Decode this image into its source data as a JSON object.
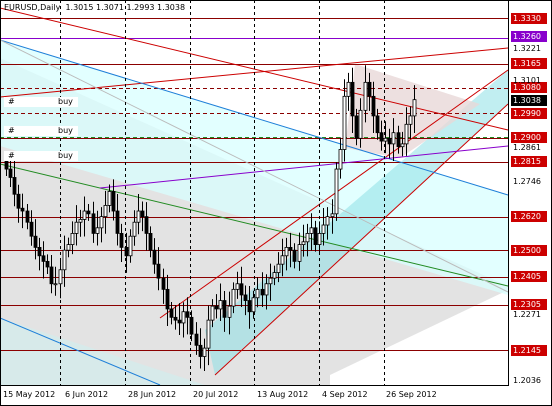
{
  "title": {
    "symbol": "EURUSD",
    "timeframe": "Daily",
    "ohlc": "1.3015 1.3071 1.2993 1.3038"
  },
  "price_scale": {
    "tags": [
      {
        "label": "1.3330",
        "color": "#cc0000"
      },
      {
        "label": "1.3260",
        "color": "#8800cc"
      },
      {
        "label": "1.3165",
        "color": "#cc0000"
      },
      {
        "label": "1.3080",
        "color": "#cc0000"
      },
      {
        "label": "1.3038",
        "color": "#000000"
      },
      {
        "label": "1.2990",
        "color": "#cc0000"
      },
      {
        "label": "1.2900",
        "color": "#cc0000"
      },
      {
        "label": "1.2815",
        "color": "#cc0000"
      },
      {
        "label": "1.2620",
        "color": "#cc0000"
      },
      {
        "label": "1.2500",
        "color": "#cc0000"
      },
      {
        "label": "1.2405",
        "color": "#cc0000"
      },
      {
        "label": "1.2305",
        "color": "#cc0000"
      },
      {
        "label": "1.2145",
        "color": "#cc0000"
      }
    ],
    "plain": [
      "1.3221",
      "1.3101",
      "1.2861",
      "1.2746",
      "1.2271",
      "1.2036"
    ]
  },
  "time_axis": [
    "15 May 2012",
    "6 Jun 2012",
    "28 Jun 2012",
    "20 Jul 2012",
    "13 Aug 2012",
    "4 Sep 2012",
    "26 Sep 2012"
  ],
  "orders": [
    {
      "symbol": "#",
      "type": "buy"
    },
    {
      "symbol": "#",
      "type": "buy"
    },
    {
      "symbol": "#",
      "type": "buy"
    }
  ],
  "colors": {
    "bull": "#ffffff",
    "bear": "#000000",
    "level": "#8b0000",
    "purple": "#8800cc",
    "channel": "#aaf0f0"
  },
  "chart_data": {
    "type": "candlestick",
    "symbol": "EURUSD",
    "timeframe": "Daily",
    "last": {
      "open": 1.3015,
      "high": 1.3071,
      "low": 1.2993,
      "close": 1.3038
    },
    "ylim": [
      1.2036,
      1.333
    ],
    "x_start": "15 May 2012",
    "x_end": "5 Oct 2012",
    "horizontal_levels": [
      1.333,
      1.326,
      1.3165,
      1.308,
      1.299,
      1.29,
      1.2815,
      1.262,
      1.25,
      1.2405,
      1.2305,
      1.2145
    ],
    "closes": [
      1.279,
      1.276,
      1.27,
      1.265,
      1.264,
      1.26,
      1.255,
      1.251,
      1.248,
      1.246,
      1.244,
      1.238,
      1.238,
      1.243,
      1.25,
      1.252,
      1.256,
      1.26,
      1.261,
      1.264,
      1.263,
      1.256,
      1.258,
      1.262,
      1.266,
      1.271,
      1.264,
      1.256,
      1.251,
      1.248,
      1.255,
      1.26,
      1.264,
      1.262,
      1.256,
      1.25,
      1.245,
      1.24,
      1.236,
      1.229,
      1.226,
      1.225,
      1.224,
      1.228,
      1.226,
      1.22,
      1.216,
      1.212,
      1.215,
      1.225,
      1.23,
      1.229,
      1.232,
      1.226,
      1.23,
      1.236,
      1.238,
      1.234,
      1.232,
      1.228,
      1.233,
      1.236,
      1.234,
      1.238,
      1.24,
      1.242,
      1.245,
      1.248,
      1.251,
      1.25,
      1.246,
      1.252,
      1.253,
      1.256,
      1.258,
      1.252,
      1.256,
      1.259,
      1.262,
      1.263,
      1.279,
      1.286,
      1.305,
      1.31,
      1.298,
      1.29,
      1.3,
      1.31,
      1.305,
      1.298,
      1.292,
      1.289,
      1.29,
      1.288,
      1.292,
      1.287,
      1.288,
      1.295,
      1.298,
      1.3038
    ]
  }
}
